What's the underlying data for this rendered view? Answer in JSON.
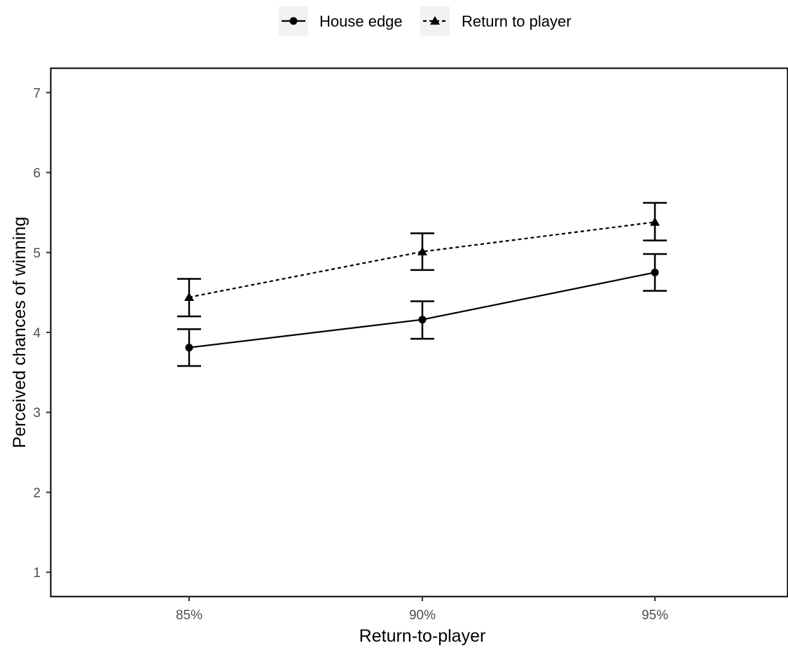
{
  "chart_data": {
    "type": "line",
    "title": "",
    "xlabel": "Return-to-player",
    "ylabel": "Perceived chances of winning",
    "categories": [
      "85%",
      "90%",
      "95%"
    ],
    "ylim": [
      0.7,
      7.3
    ],
    "yticks": [
      1,
      2,
      3,
      4,
      5,
      6,
      7
    ],
    "grid": false,
    "legend_position": "top",
    "series": [
      {
        "name": "House edge",
        "marker": "circle",
        "line_style": "solid",
        "color": "#000000",
        "values": [
          3.81,
          4.16,
          4.75
        ],
        "error_low": [
          3.58,
          3.92,
          4.52
        ],
        "error_high": [
          4.04,
          4.39,
          4.98
        ]
      },
      {
        "name": "Return to player",
        "marker": "triangle",
        "line_style": "dotted",
        "color": "#000000",
        "values": [
          4.44,
          5.01,
          5.38
        ],
        "error_low": [
          4.2,
          4.78,
          5.15
        ],
        "error_high": [
          4.67,
          5.24,
          5.62
        ]
      }
    ]
  }
}
